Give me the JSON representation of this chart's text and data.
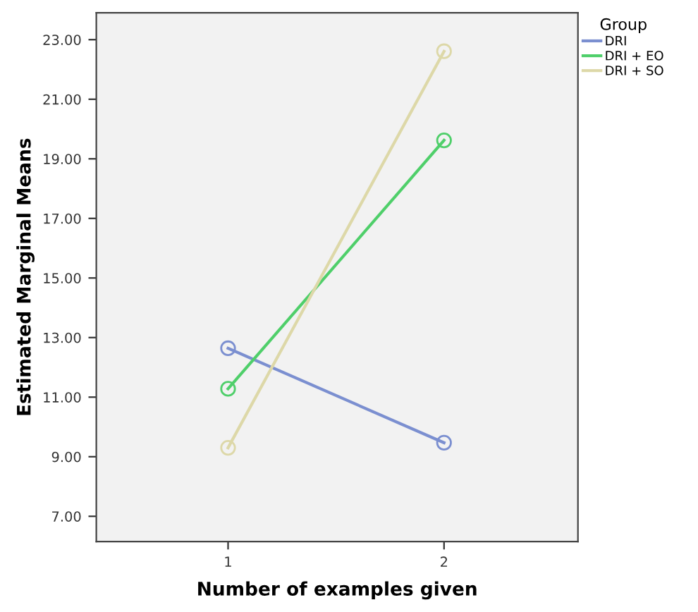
{
  "chart_data": {
    "type": "line",
    "xlabel": "Number of examples given",
    "ylabel": "Estimated Marginal Means",
    "legend_title": "Group",
    "categories": [
      "1",
      "2"
    ],
    "series": [
      {
        "name": "DRI",
        "color": "#7b8fd0",
        "values": [
          12.64,
          9.47
        ]
      },
      {
        "name": "DRI + EO",
        "color": "#4fcf6a",
        "values": [
          11.28,
          19.62
        ]
      },
      {
        "name": "DRI + SO",
        "color": "#ddd8a8",
        "values": [
          9.3,
          22.61
        ]
      }
    ],
    "ylim": [
      6.15,
      23.9
    ],
    "yticks": [
      {
        "value": 7,
        "label": "7.00"
      },
      {
        "value": 9,
        "label": "9.00"
      },
      {
        "value": 11,
        "label": "11.00"
      },
      {
        "value": 13,
        "label": "13.00"
      },
      {
        "value": 15,
        "label": "15.00"
      },
      {
        "value": 17,
        "label": "17.00"
      },
      {
        "value": 19,
        "label": "19.00"
      },
      {
        "value": 21,
        "label": "21.00"
      },
      {
        "value": 23,
        "label": "23.00"
      }
    ],
    "marker": "circle",
    "grid": false,
    "legend": "top right"
  }
}
